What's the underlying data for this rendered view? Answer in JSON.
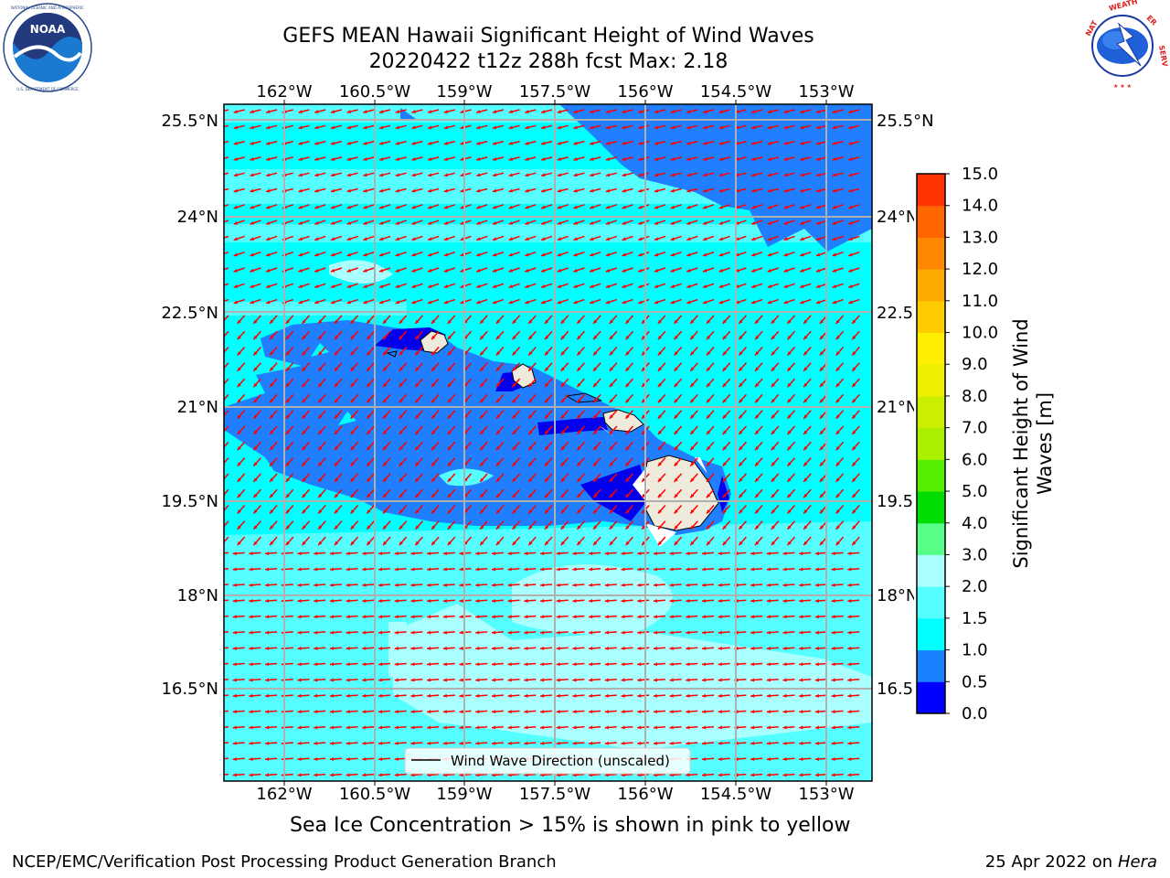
{
  "header": {
    "title_line1": "GEFS MEAN Hawaii Significant Height of Wind Waves",
    "title_line2": "20220422 t12z 288h fcst   Max: 2.18"
  },
  "logos": {
    "left": {
      "name": "noaa-logo",
      "text": "NOAA",
      "ring_text": "NATIONAL OCEANIC AND ATMOSPHERIC ADMINISTRATION · U.S. DEPARTMENT OF COMMERCE"
    },
    "right": {
      "name": "nws-logo",
      "ring_text": "NATIONAL WEATHER SERVICE"
    }
  },
  "map": {
    "lon_labels": [
      "162°W",
      "160.5°W",
      "159°W",
      "157.5°W",
      "156°W",
      "154.5°W",
      "153°W"
    ],
    "lat_labels_left": [
      "25.5°N",
      "24°N",
      "22.5°N",
      "21°N",
      "19.5°N",
      "18°N",
      "16.5°N"
    ],
    "lat_labels_right": [
      "25.5°N",
      "24°N",
      "22.5",
      "21°N",
      "19.5",
      "18°N",
      "16.5"
    ],
    "legend_label": "Wind Wave Direction (unscaled)",
    "colors": {
      "ocean_cyan": "#00ffff",
      "ocean_light": "#55ffff",
      "ocean_pale": "#aaffff",
      "ocean_blue": "#1f7fff",
      "ocean_deep": "#0000ee",
      "land": "#efebdc",
      "arrow": "#ff0000",
      "grid": "#b0b0b0"
    }
  },
  "colorbar": {
    "label_line1": "Significant Height of Wind",
    "label_line2": "Waves [m]",
    "ticks": [
      "0.0",
      "0.5",
      "1.0",
      "1.5",
      "2.0",
      "3.0",
      "4.0",
      "5.0",
      "6.0",
      "7.0",
      "8.0",
      "9.0",
      "10.0",
      "11.0",
      "12.0",
      "13.0",
      "14.0",
      "15.0"
    ],
    "colors": [
      "#0000ff",
      "#1a82ff",
      "#00ffff",
      "#55ffff",
      "#aaffff",
      "#55ff88",
      "#00dd00",
      "#55ee00",
      "#aaee00",
      "#ccee00",
      "#eeee00",
      "#ffee00",
      "#ffcc00",
      "#ffaa00",
      "#ff8800",
      "#ff6600",
      "#ff3300",
      "#ff0000"
    ]
  },
  "caption": "Sea Ice Concentration > 15% is shown in pink to yellow",
  "footer": {
    "left": "NCEP/EMC/Verification Post Processing Product Generation Branch",
    "right_prefix": "25 Apr 2022 on ",
    "right_machine": "Hera"
  }
}
